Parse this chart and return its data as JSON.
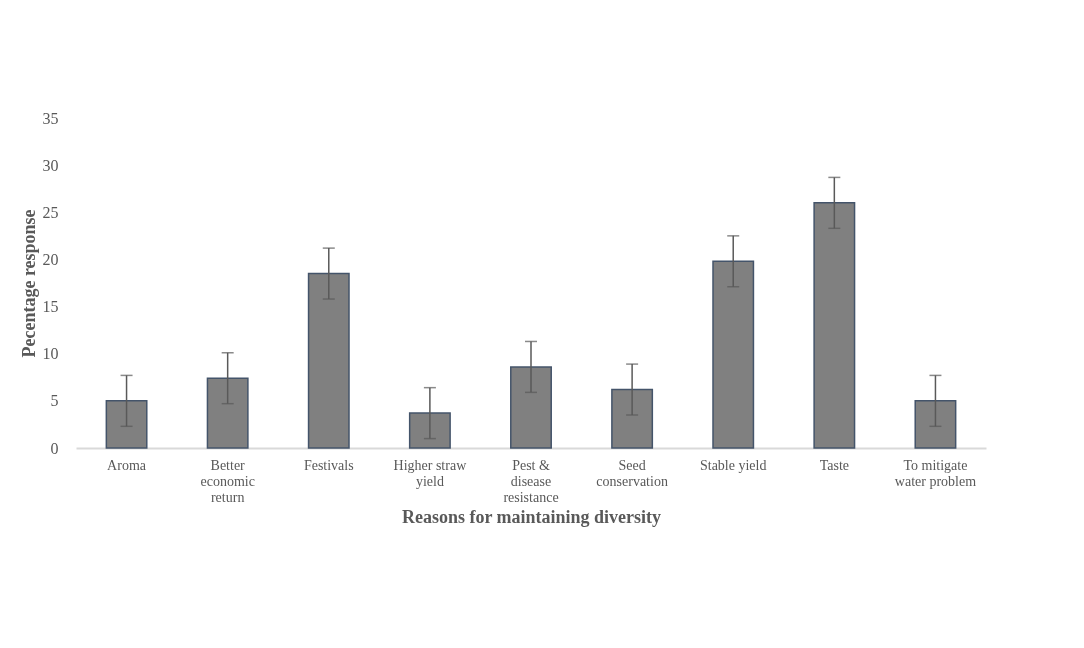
{
  "chart_data": {
    "type": "bar",
    "xlabel": "Reasons for maintaining diversity",
    "ylabel": "Pecentage response",
    "categories": [
      "Aroma",
      "Better economic return",
      "Festivals",
      "Higher straw yield",
      "Pest & disease resistance",
      "Seed conservation",
      "Stable yield",
      "Taste",
      "To mitigate water problem"
    ],
    "values": [
      5.0,
      7.4,
      18.5,
      3.7,
      8.6,
      6.2,
      19.8,
      26.0,
      5.0
    ],
    "errors": [
      2.7,
      2.7,
      2.7,
      2.7,
      2.7,
      2.7,
      2.7,
      2.7,
      2.7
    ],
    "color": "#808080",
    "ylim": [
      0,
      35
    ],
    "yticks": [
      0,
      5,
      10,
      15,
      20,
      25,
      30,
      35
    ],
    "grid": false
  }
}
